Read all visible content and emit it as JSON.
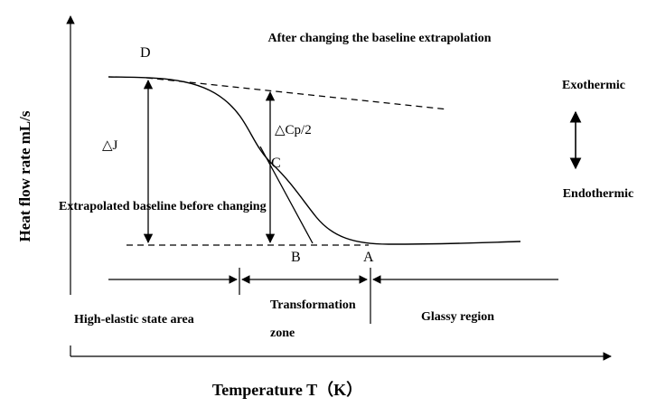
{
  "figure": {
    "axes": {
      "y_label": "Heat flow rate mL/s",
      "x_label": "Temperature T（K）"
    },
    "titles": {
      "top_note": "After changing the baseline extrapolation",
      "before_note": "Extrapolated baseline before changing"
    },
    "points": {
      "D": "D",
      "C": "C",
      "B": "B",
      "A": "A"
    },
    "measures": {
      "delta_j": "△J",
      "delta_cp_half": "△Cp/2"
    },
    "direction": {
      "exothermic": "Exothermic",
      "endothermic": "Endothermic"
    },
    "regions": {
      "high_elastic": "High-elastic state area",
      "transformation_line1": "Transformation",
      "transformation_line2": "zone",
      "glassy": "Glassy region"
    }
  }
}
